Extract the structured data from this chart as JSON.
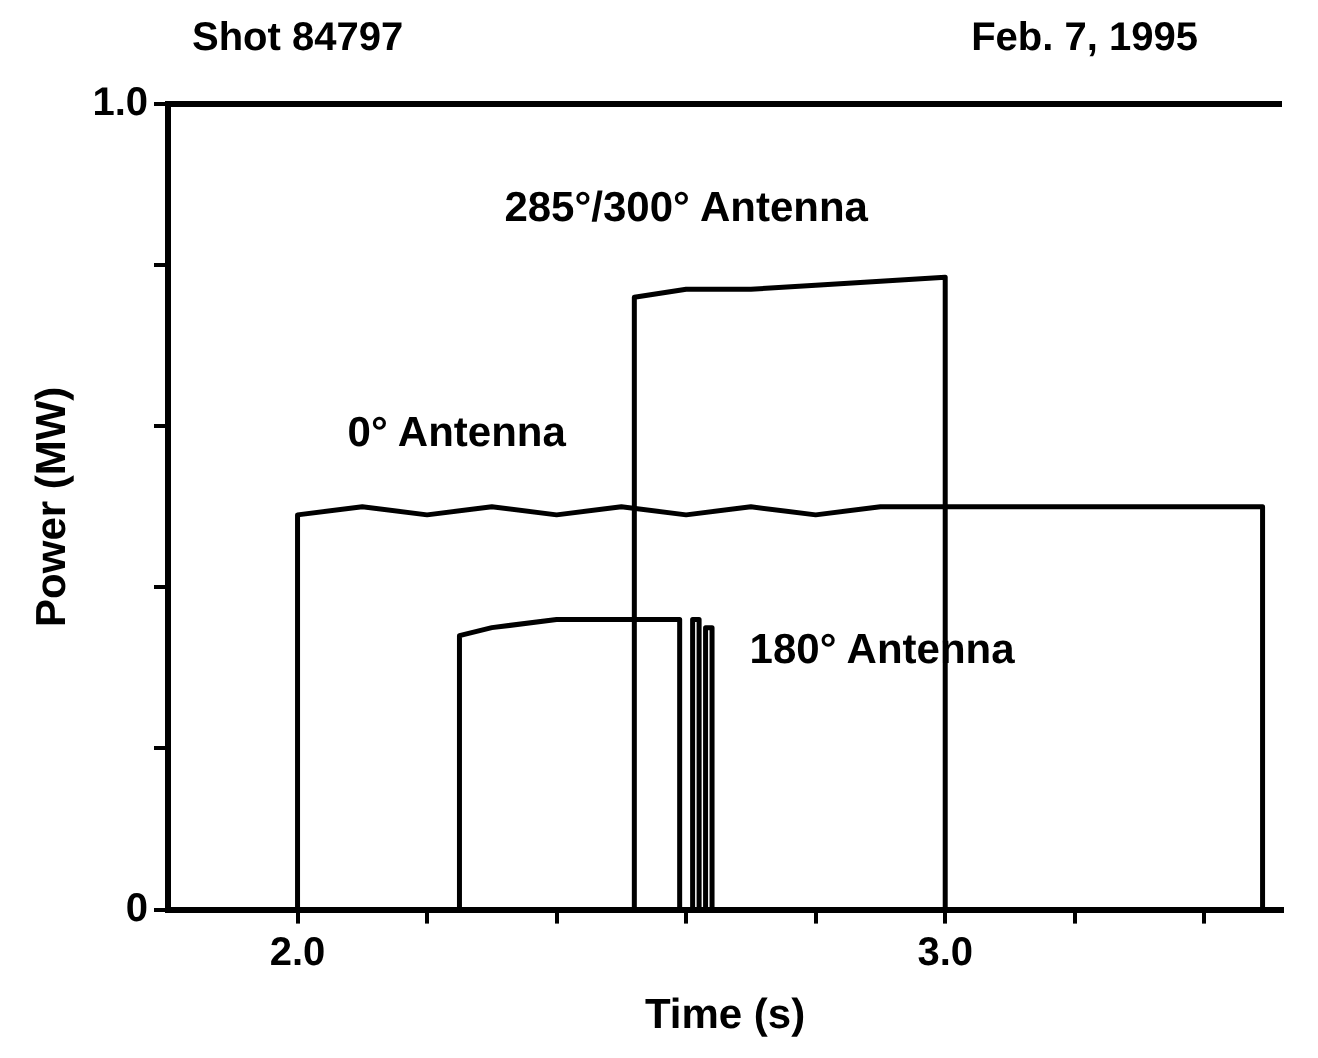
{
  "chart_data": {
    "type": "line",
    "xlabel": "Time (s)",
    "ylabel": "Power (MW)",
    "annotations": [
      "Shot 84797",
      "Feb. 7, 1995"
    ],
    "xlim": [
      1.8,
      3.52
    ],
    "ylim": [
      0,
      1
    ],
    "xticks": [
      {
        "value": 2,
        "label": "2.0"
      },
      {
        "value": 2.2,
        "label": null
      },
      {
        "value": 2.4,
        "label": null
      },
      {
        "value": 2.6,
        "label": null
      },
      {
        "value": 2.8,
        "label": null
      },
      {
        "value": 3,
        "label": "3.0"
      },
      {
        "value": 3.2,
        "label": null
      },
      {
        "value": 3.4,
        "label": null
      }
    ],
    "yticks": [
      0,
      {
        "value": 0.2,
        "label": null
      },
      {
        "value": 0.4,
        "label": null
      },
      {
        "value": 0.6,
        "label": null
      },
      {
        "value": 0.8,
        "label": null
      },
      {
        "value": 1,
        "label": "1.0"
      }
    ],
    "grid": false,
    "legend": false,
    "marker": "none",
    "line_style": "solid",
    "series": [
      {
        "name": "0° Antenna",
        "color": "#000000",
        "x": [
          1.8,
          2.0,
          2.0,
          2.1,
          2.2,
          2.3,
          2.4,
          2.5,
          2.6,
          2.7,
          2.8,
          2.9,
          3.0,
          3.1,
          3.2,
          3.3,
          3.4,
          3.49,
          3.49,
          3.52
        ],
        "values": [
          0,
          0,
          0.49,
          0.5,
          0.49,
          0.5,
          0.49,
          0.5,
          0.49,
          0.5,
          0.49,
          0.5,
          0.5,
          0.5,
          0.5,
          0.5,
          0.5,
          0.5,
          0,
          0
        ]
      },
      {
        "name": "285°/300° Antenna",
        "color": "#000000",
        "x": [
          1.8,
          2.52,
          2.52,
          2.6,
          2.7,
          2.8,
          2.9,
          3.0,
          3.0,
          3.52
        ],
        "values": [
          0,
          0,
          0.76,
          0.77,
          0.77,
          0.775,
          0.78,
          0.785,
          0,
          0
        ]
      },
      {
        "name": "180° Antenna",
        "color": "#000000",
        "x": [
          1.8,
          2.25,
          2.25,
          2.3,
          2.4,
          2.5,
          2.59,
          2.59,
          2.61,
          2.61,
          2.62,
          2.62,
          2.63,
          2.63,
          2.64,
          2.64,
          2.65,
          2.65,
          3.52
        ],
        "values": [
          0,
          0,
          0.34,
          0.35,
          0.36,
          0.36,
          0.36,
          0,
          0,
          0.36,
          0.36,
          0,
          0,
          0.35,
          0.35,
          0,
          0,
          0,
          0
        ]
      }
    ]
  }
}
